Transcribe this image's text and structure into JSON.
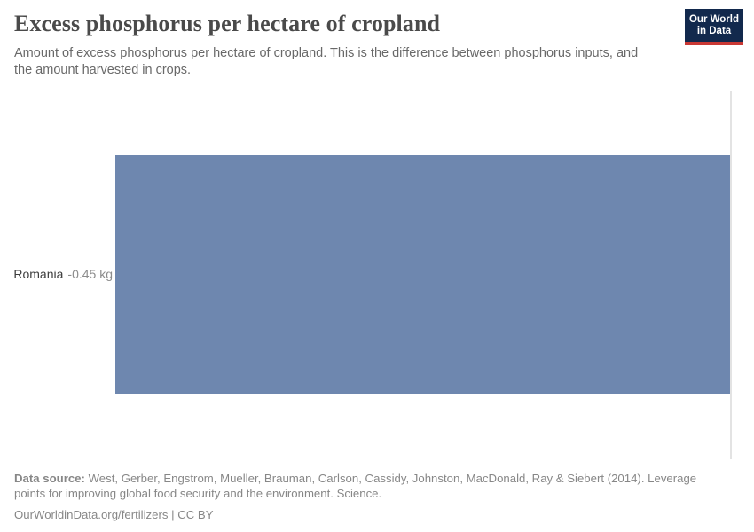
{
  "header": {
    "title": "Excess phosphorus per hectare of cropland",
    "subtitle": "Amount of excess phosphorus per hectare of cropland. This is the difference between phosphorus inputs, and the amount harvested in crops.",
    "logo": {
      "line1": "Our World",
      "line2": "in Data"
    }
  },
  "chart_data": {
    "type": "bar",
    "orientation": "horizontal",
    "categories": [
      "Romania"
    ],
    "values": [
      -0.45
    ],
    "value_labels": [
      "-0.45 kg"
    ],
    "unit": "kg",
    "title": "Excess phosphorus per hectare of cropland",
    "xlabel": "",
    "ylabel": "",
    "xlim": [
      -0.45,
      0
    ],
    "grid": false,
    "zero_line": true,
    "axis_tick_labels": [],
    "bar_color": "#6e87af"
  },
  "footer": {
    "data_source_label": "Data source:",
    "data_source_text": "West, Gerber, Engstrom, Mueller, Brauman, Carlson, Cassidy, Johnston, MacDonald, Ray & Siebert (2014). Leverage points for improving global food security and the environment. Science.",
    "attribution": "OurWorldinData.org/fertilizers | CC BY"
  },
  "colors": {
    "bar": "#6e87af",
    "zero_line": "#e3e3e3",
    "logo_navy": "#12294d",
    "logo_red": "#c93834"
  }
}
